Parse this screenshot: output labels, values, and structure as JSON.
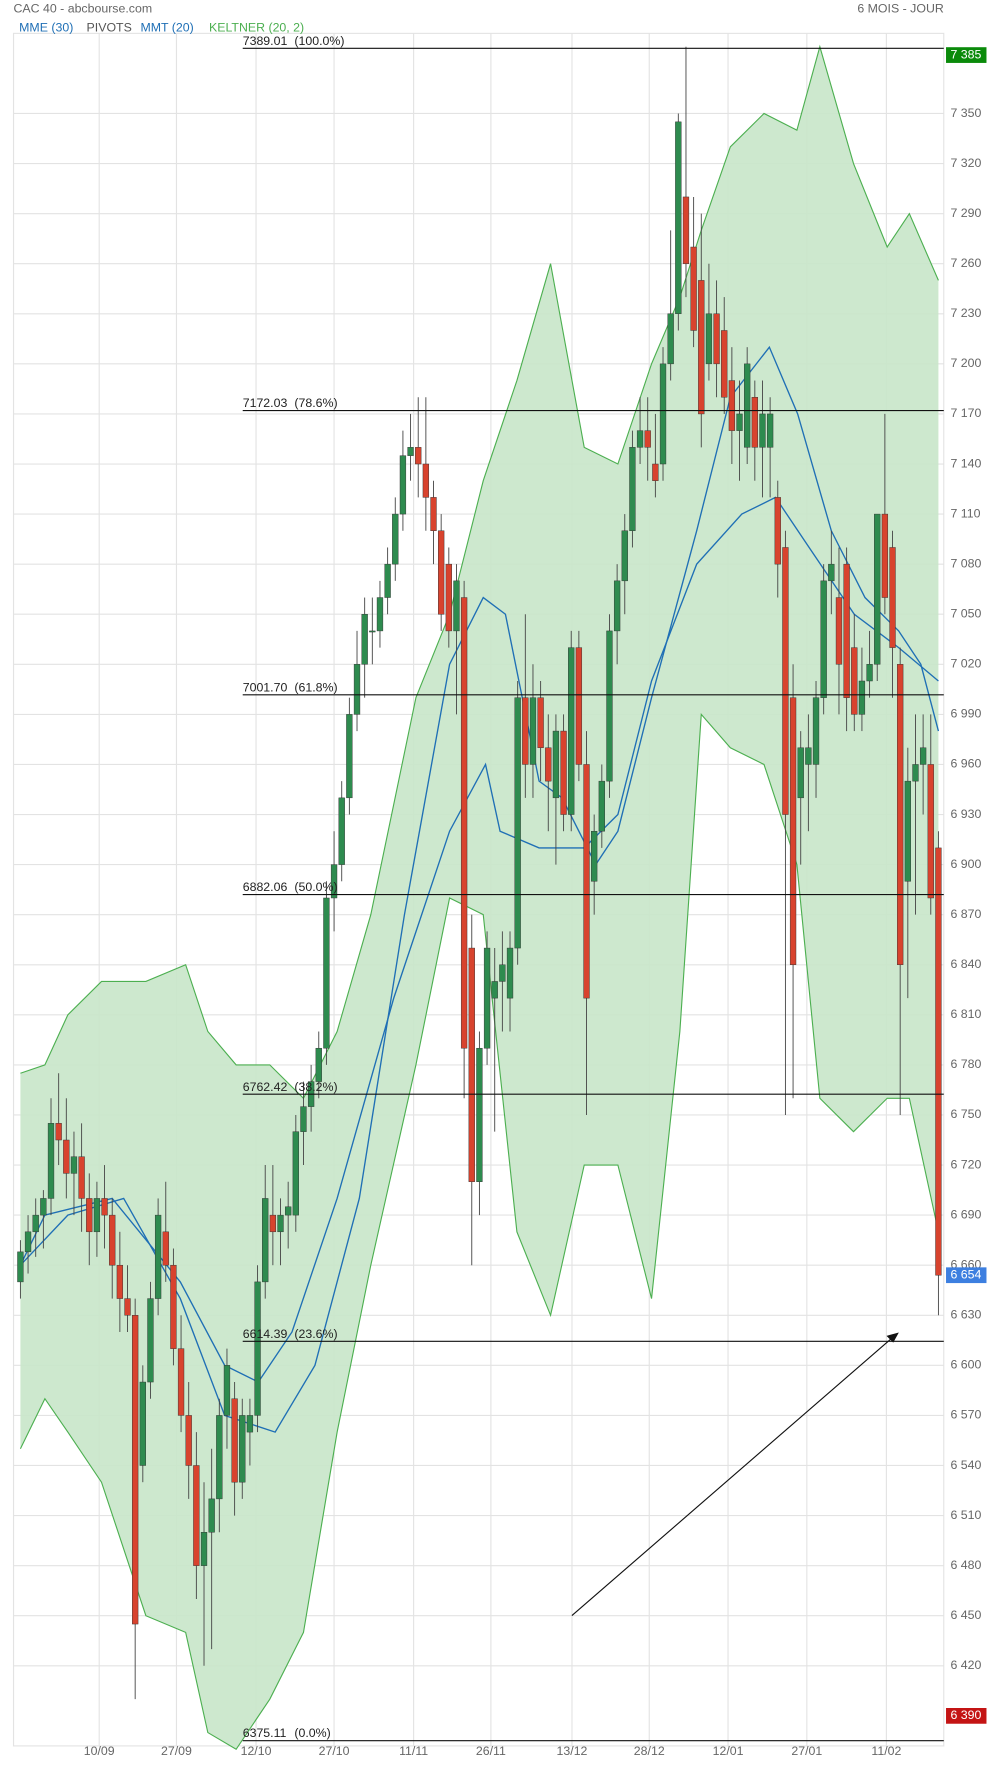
{
  "chart_data": {
    "type": "candlestick",
    "title": "CAC 40 - abcbourse.com",
    "period": "6 MOIS - JOUR",
    "up_color": "#2e8b4f",
    "down_color": "#d8432e",
    "candles": [
      [
        6650,
        6675,
        6640,
        6668
      ],
      [
        6668,
        6690,
        6655,
        6680
      ],
      [
        6680,
        6700,
        6665,
        6690
      ],
      [
        6690,
        6705,
        6670,
        6700
      ],
      [
        6700,
        6760,
        6690,
        6745
      ],
      [
        6745,
        6775,
        6720,
        6735
      ],
      [
        6735,
        6760,
        6700,
        6715
      ],
      [
        6715,
        6740,
        6690,
        6725
      ],
      [
        6725,
        6745,
        6680,
        6700
      ],
      [
        6700,
        6715,
        6660,
        6680
      ],
      [
        6680,
        6710,
        6665,
        6700
      ],
      [
        6700,
        6720,
        6670,
        6690
      ],
      [
        6690,
        6700,
        6640,
        6660
      ],
      [
        6660,
        6680,
        6620,
        6640
      ],
      [
        6640,
        6660,
        6620,
        6630
      ],
      [
        6630,
        6640,
        6400,
        6445
      ],
      [
        6540,
        6600,
        6530,
        6590
      ],
      [
        6590,
        6650,
        6580,
        6640
      ],
      [
        6640,
        6700,
        6630,
        6690
      ],
      [
        6680,
        6710,
        6650,
        6660
      ],
      [
        6660,
        6670,
        6600,
        6610
      ],
      [
        6610,
        6630,
        6560,
        6570
      ],
      [
        6570,
        6590,
        6520,
        6540
      ],
      [
        6540,
        6560,
        6460,
        6480
      ],
      [
        6480,
        6530,
        6420,
        6500
      ],
      [
        6500,
        6550,
        6430,
        6520
      ],
      [
        6520,
        6580,
        6500,
        6570
      ],
      [
        6570,
        6610,
        6550,
        6600
      ],
      [
        6580,
        6590,
        6510,
        6530
      ],
      [
        6530,
        6580,
        6520,
        6570
      ],
      [
        6560,
        6580,
        6540,
        6570
      ],
      [
        6570,
        6660,
        6560,
        6650
      ],
      [
        6650,
        6720,
        6640,
        6700
      ],
      [
        6690,
        6720,
        6660,
        6680
      ],
      [
        6680,
        6700,
        6660,
        6690
      ],
      [
        6690,
        6710,
        6670,
        6695
      ],
      [
        6690,
        6750,
        6680,
        6740
      ],
      [
        6740,
        6770,
        6720,
        6755
      ],
      [
        6755,
        6780,
        6740,
        6770
      ],
      [
        6770,
        6800,
        6760,
        6790
      ],
      [
        6790,
        6890,
        6780,
        6880
      ],
      [
        6880,
        6920,
        6860,
        6900
      ],
      [
        6900,
        6950,
        6890,
        6940
      ],
      [
        6940,
        7000,
        6930,
        6990
      ],
      [
        6990,
        7040,
        6980,
        7020
      ],
      [
        7020,
        7060,
        7000,
        7050
      ],
      [
        7040,
        7060,
        7020,
        7040
      ],
      [
        7040,
        7070,
        7030,
        7060
      ],
      [
        7060,
        7090,
        7050,
        7080
      ],
      [
        7080,
        7120,
        7070,
        7110
      ],
      [
        7110,
        7160,
        7100,
        7145
      ],
      [
        7145,
        7170,
        7130,
        7150
      ],
      [
        7150,
        7180,
        7120,
        7140
      ],
      [
        7140,
        7180,
        7100,
        7120
      ],
      [
        7120,
        7130,
        7080,
        7100
      ],
      [
        7100,
        7110,
        7040,
        7050
      ],
      [
        7080,
        7090,
        7030,
        7040
      ],
      [
        7040,
        7080,
        6990,
        7070
      ],
      [
        7060,
        7070,
        6760,
        6790
      ],
      [
        6850,
        6870,
        6660,
        6710
      ],
      [
        6710,
        6800,
        6690,
        6790
      ],
      [
        6790,
        6860,
        6780,
        6850
      ],
      [
        6820,
        6850,
        6740,
        6830
      ],
      [
        6830,
        6860,
        6800,
        6840
      ],
      [
        6820,
        6860,
        6800,
        6850
      ],
      [
        6850,
        7010,
        6840,
        7000
      ],
      [
        7000,
        7050,
        6940,
        6960
      ],
      [
        6960,
        7020,
        6940,
        7000
      ],
      [
        7000,
        7010,
        6950,
        6970
      ],
      [
        6970,
        6990,
        6920,
        6950
      ],
      [
        6940,
        6990,
        6900,
        6980
      ],
      [
        6980,
        6990,
        6920,
        6930
      ],
      [
        6930,
        7040,
        6920,
        7030
      ],
      [
        7030,
        7040,
        6950,
        6960
      ],
      [
        6960,
        6980,
        6750,
        6820
      ],
      [
        6890,
        6930,
        6870,
        6920
      ],
      [
        6920,
        6960,
        6910,
        6950
      ],
      [
        6950,
        7050,
        6940,
        7040
      ],
      [
        7040,
        7080,
        7020,
        7070
      ],
      [
        7070,
        7110,
        7050,
        7100
      ],
      [
        7100,
        7160,
        7090,
        7150
      ],
      [
        7150,
        7180,
        7140,
        7160
      ],
      [
        7160,
        7180,
        7130,
        7150
      ],
      [
        7140,
        7170,
        7120,
        7130
      ],
      [
        7140,
        7210,
        7130,
        7200
      ],
      [
        7200,
        7280,
        7190,
        7230
      ],
      [
        7230,
        7350,
        7220,
        7345
      ],
      [
        7300,
        7390,
        7240,
        7260
      ],
      [
        7270,
        7300,
        7210,
        7220
      ],
      [
        7250,
        7290,
        7150,
        7170
      ],
      [
        7200,
        7260,
        7190,
        7230
      ],
      [
        7230,
        7250,
        7180,
        7200
      ],
      [
        7220,
        7240,
        7170,
        7180
      ],
      [
        7190,
        7210,
        7140,
        7160
      ],
      [
        7160,
        7190,
        7130,
        7170
      ],
      [
        7150,
        7210,
        7140,
        7200
      ],
      [
        7180,
        7190,
        7130,
        7150
      ],
      [
        7150,
        7190,
        7120,
        7170
      ],
      [
        7150,
        7180,
        7120,
        7170
      ],
      [
        7120,
        7130,
        7060,
        7080
      ],
      [
        7090,
        7100,
        6750,
        6930
      ],
      [
        7000,
        7020,
        6760,
        6840
      ],
      [
        6940,
        6980,
        6900,
        6970
      ],
      [
        6960,
        6990,
        6920,
        6970
      ],
      [
        6960,
        7010,
        6940,
        7000
      ],
      [
        7000,
        7080,
        6990,
        7070
      ],
      [
        7070,
        7100,
        7050,
        7080
      ],
      [
        7060,
        7090,
        6990,
        7020
      ],
      [
        7080,
        7090,
        6980,
        7000
      ],
      [
        7030,
        7050,
        6980,
        6990
      ],
      [
        6990,
        7030,
        6980,
        7010
      ],
      [
        7010,
        7040,
        7000,
        7020
      ],
      [
        7020,
        7110,
        7010,
        7110
      ],
      [
        7110,
        7170,
        7050,
        7060
      ],
      [
        7090,
        7100,
        7000,
        7030
      ],
      [
        7020,
        7030,
        6750,
        6840
      ],
      [
        6890,
        6970,
        6820,
        6950
      ],
      [
        6950,
        6990,
        6870,
        6960
      ],
      [
        6960,
        6990,
        6930,
        6970
      ],
      [
        6960,
        6990,
        6870,
        6880
      ],
      [
        6910,
        6920,
        6630,
        6654
      ]
    ],
    "keltner": {
      "name": "KELTNER (20, 2)",
      "color": "#4caf50",
      "fill": "#c8e6c9",
      "x": [
        0,
        3.2,
        6.2,
        10.6,
        16.4,
        21.6,
        24.5,
        28.2,
        32.6,
        37,
        41.4,
        45.8,
        51.7,
        56.1,
        60.5,
        64.9,
        69.3,
        73.7,
        78.1,
        82.5,
        86.2,
        89,
        92.8,
        97.2,
        101.5,
        104.5,
        108.9,
        113.3,
        116.2,
        120
      ],
      "upper": [
        6775,
        6780,
        6810,
        6830,
        6830,
        6840,
        6800,
        6780,
        6780,
        6760,
        6800,
        6870,
        7000,
        7050,
        7130,
        7190,
        7260,
        7150,
        7140,
        7200,
        7240,
        7280,
        7330,
        7350,
        7340,
        7390,
        7320,
        7270,
        7290,
        7250
      ],
      "lower": [
        6550,
        6580,
        6560,
        6530,
        6450,
        6440,
        6380,
        6370,
        6400,
        6440,
        6560,
        6660,
        6780,
        6880,
        6870,
        6680,
        6630,
        6720,
        6720,
        6640,
        6800,
        6990,
        6970,
        6960,
        6900,
        6760,
        6740,
        6760,
        6760,
        6680
      ]
    },
    "pivots_label": "PIVOTS",
    "series": [
      {
        "name": "MME (30)",
        "color": "#1f6fb5",
        "x": [
          0,
          3.2,
          12,
          20.9,
          26.7,
          31.1,
          35.5,
          41.4,
          48.8,
          56.1,
          60.8,
          62.7,
          67.8,
          73.7,
          78.1,
          82.5,
          88.4,
          94.3,
          98.7,
          103.1,
          109,
          114.8,
          120
        ],
        "values": [
          6660,
          6690,
          6700,
          6650,
          6600,
          6590,
          6620,
          6700,
          6820,
          6920,
          6960,
          6920,
          6910,
          6910,
          6930,
          7010,
          7080,
          7110,
          7120,
          7090,
          7050,
          7030,
          7010
        ]
      },
      {
        "name": "MMT (20)",
        "color": "#1f6fb5",
        "x": [
          0,
          6.2,
          13.5,
          20.9,
          26.7,
          33.3,
          38.5,
          44.3,
          50.2,
          56.1,
          60.5,
          63.4,
          67.8,
          70.8,
          75.2,
          78.1,
          82.5,
          88.4,
          92.8,
          97.9,
          101.6,
          106,
          110.4,
          114.8,
          117.7,
          120
        ],
        "values": [
          6660,
          6690,
          6700,
          6640,
          6570,
          6560,
          6600,
          6700,
          6870,
          7020,
          7060,
          7050,
          6950,
          6940,
          6900,
          6920,
          7000,
          7100,
          7180,
          7210,
          7170,
          7100,
          7060,
          7040,
          7020,
          6980
        ]
      }
    ],
    "levels": [
      {
        "value": 7389.01,
        "label": "7389.01",
        "ratio": "(100.0%)"
      },
      {
        "value": 7172.03,
        "label": "7172.03",
        "ratio": "(78.6%)"
      },
      {
        "value": 7001.7,
        "label": "7001.70",
        "ratio": "(61.8%)"
      },
      {
        "value": 6882.06,
        "label": "6882.06",
        "ratio": "(50.0%)"
      },
      {
        "value": 6762.42,
        "label": "6762.42",
        "ratio": "(38.2%)"
      },
      {
        "value": 6614.39,
        "label": "6614.39",
        "ratio": "(23.6%)"
      },
      {
        "value": 6375.11,
        "label": "6375.11",
        "ratio": "(0.0%)"
      }
    ],
    "price_tags": [
      {
        "value": 7385,
        "label": "7 385",
        "color": "#0a8a0a"
      },
      {
        "value": 6654,
        "label": "6 654",
        "color": "#3d7fe0"
      },
      {
        "value": 6390,
        "label": "6 390",
        "color": "#c41414"
      }
    ],
    "xlim": [
      -0.9,
      120.7
    ],
    "xticks": [
      {
        "value": 10.3,
        "label": "10/09"
      },
      {
        "value": 20.4,
        "label": "27/09"
      },
      {
        "value": 30.8,
        "label": "12/10"
      },
      {
        "value": 41,
        "label": "27/10"
      },
      {
        "value": 51.4,
        "label": "11/11"
      },
      {
        "value": 61.5,
        "label": "26/11"
      },
      {
        "value": 72.1,
        "label": "13/12"
      },
      {
        "value": 82.2,
        "label": "28/12"
      },
      {
        "value": 92.5,
        "label": "12/01"
      },
      {
        "value": 102.8,
        "label": "27/01"
      },
      {
        "value": 113.2,
        "label": "11/02"
      }
    ],
    "ylim": [
      6372,
      7398
    ],
    "yticks": [
      {
        "value": 6420,
        "label": "6 420"
      },
      {
        "value": 6450,
        "label": "6 450"
      },
      {
        "value": 6480,
        "label": "6 480"
      },
      {
        "value": 6510,
        "label": "6 510"
      },
      {
        "value": 6540,
        "label": "6 540"
      },
      {
        "value": 6570,
        "label": "6 570"
      },
      {
        "value": 6600,
        "label": "6 600"
      },
      {
        "value": 6630,
        "label": "6 630"
      },
      {
        "value": 6660,
        "label": "6 660"
      },
      {
        "value": 6690,
        "label": "6 690"
      },
      {
        "value": 6720,
        "label": "6 720"
      },
      {
        "value": 6750,
        "label": "6 750"
      },
      {
        "value": 6780,
        "label": "6 780"
      },
      {
        "value": 6810,
        "label": "6 810"
      },
      {
        "value": 6840,
        "label": "6 840"
      },
      {
        "value": 6870,
        "label": "6 870"
      },
      {
        "value": 6900,
        "label": "6 900"
      },
      {
        "value": 6930,
        "label": "6 930"
      },
      {
        "value": 6960,
        "label": "6 960"
      },
      {
        "value": 6990,
        "label": "6 990"
      },
      {
        "value": 7020,
        "label": "7 020"
      },
      {
        "value": 7050,
        "label": "7 050"
      },
      {
        "value": 7080,
        "label": "7 080"
      },
      {
        "value": 7110,
        "label": "7 110"
      },
      {
        "value": 7140,
        "label": "7 140"
      },
      {
        "value": 7170,
        "label": "7 170"
      },
      {
        "value": 7200,
        "label": "7 200"
      },
      {
        "value": 7230,
        "label": "7 230"
      },
      {
        "value": 7260,
        "label": "7 260"
      },
      {
        "value": 7290,
        "label": "7 290"
      },
      {
        "value": 7320,
        "label": "7 320"
      },
      {
        "value": 7350,
        "label": "7 350"
      }
    ],
    "grid": true
  }
}
